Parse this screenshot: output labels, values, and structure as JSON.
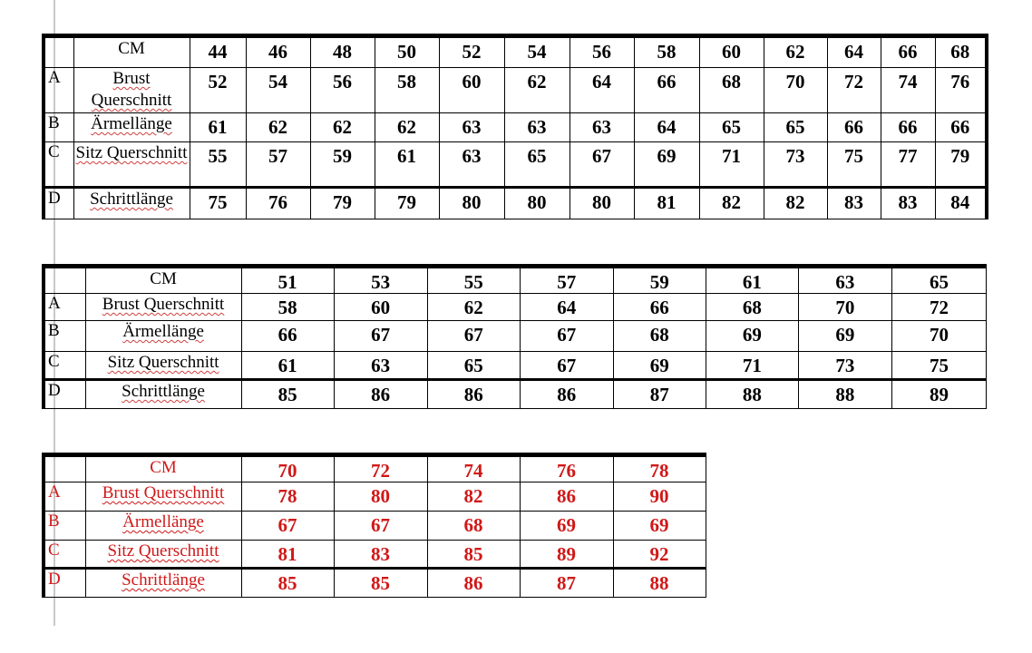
{
  "tables": [
    {
      "header_label": "CM",
      "sizes": [
        "44",
        "46",
        "48",
        "50",
        "52",
        "54",
        "56",
        "58",
        "60",
        "62",
        "64",
        "66",
        "68"
      ],
      "rows": [
        {
          "letter": "A",
          "label": "Brust Querschnitt",
          "values": [
            "52",
            "54",
            "56",
            "58",
            "60",
            "62",
            "64",
            "66",
            "68",
            "70",
            "72",
            "74",
            "76"
          ]
        },
        {
          "letter": "B",
          "label": "Ärmellänge",
          "values": [
            "61",
            "62",
            "62",
            "62",
            "63",
            "63",
            "63",
            "64",
            "65",
            "65",
            "66",
            "66",
            "66"
          ]
        },
        {
          "letter": "C",
          "label": "Sitz Querschnitt",
          "values": [
            "55",
            "57",
            "59",
            "61",
            "63",
            "65",
            "67",
            "69",
            "71",
            "73",
            "75",
            "77",
            "79"
          ]
        },
        {
          "letter": "D",
          "label": "Schrittlänge",
          "values": [
            "75",
            "76",
            "79",
            "79",
            "80",
            "80",
            "80",
            "81",
            "82",
            "82",
            "83",
            "83",
            "84"
          ]
        }
      ]
    },
    {
      "header_label": "CM",
      "sizes": [
        "51",
        "53",
        "55",
        "57",
        "59",
        "61",
        "63",
        "65"
      ],
      "rows": [
        {
          "letter": "A",
          "label": "Brust Querschnitt",
          "values": [
            "58",
            "60",
            "62",
            "64",
            "66",
            "68",
            "70",
            "72"
          ]
        },
        {
          "letter": "B",
          "label": "Ärmellänge",
          "values": [
            "66",
            "67",
            "67",
            "67",
            "68",
            "69",
            "69",
            "70"
          ]
        },
        {
          "letter": "C",
          "label": "Sitz Querschnitt",
          "values": [
            "61",
            "63",
            "65",
            "67",
            "69",
            "71",
            "73",
            "75"
          ]
        },
        {
          "letter": "D",
          "label": "Schrittlänge",
          "values": [
            "85",
            "86",
            "86",
            "86",
            "87",
            "88",
            "88",
            "89"
          ]
        }
      ]
    },
    {
      "text_color": "#d01818",
      "header_label": "CM",
      "sizes": [
        "70",
        "72",
        "74",
        "76",
        "78"
      ],
      "rows": [
        {
          "letter": "A",
          "label": "Brust Querschnitt",
          "values": [
            "78",
            "80",
            "82",
            "86",
            "90"
          ]
        },
        {
          "letter": "B",
          "label": "Ärmellänge",
          "values": [
            "67",
            "67",
            "68",
            "69",
            "69"
          ]
        },
        {
          "letter": "C",
          "label": "Sitz Querschnitt",
          "values": [
            "81",
            "83",
            "85",
            "89",
            "92"
          ]
        },
        {
          "letter": "D",
          "label": "Schrittlänge",
          "values": [
            "85",
            "85",
            "86",
            "87",
            "88"
          ]
        }
      ]
    }
  ]
}
